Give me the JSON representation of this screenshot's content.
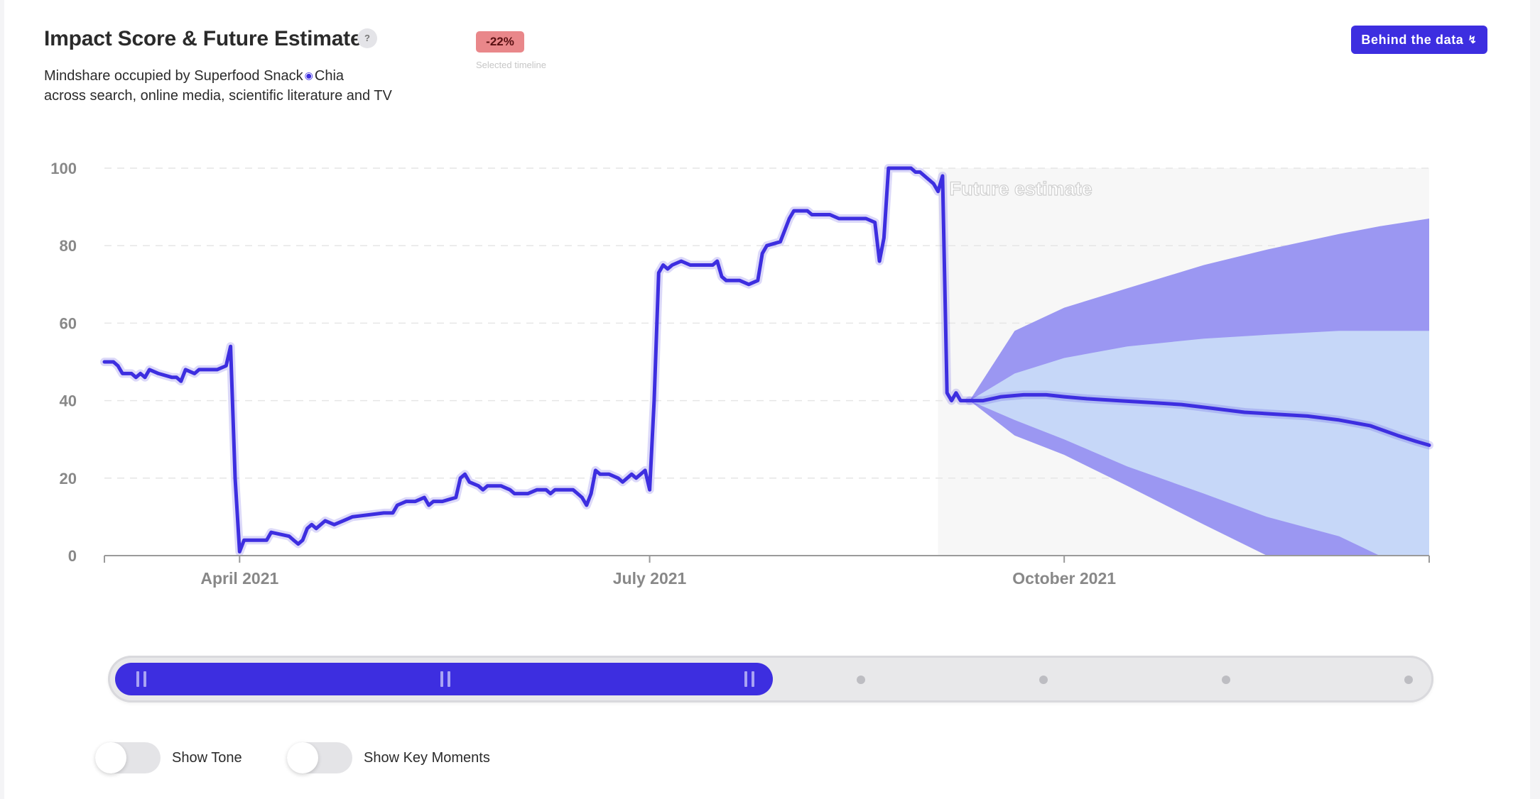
{
  "header": {
    "title": "Impact Score & Future Estimate",
    "help_label": "?",
    "subtitle_prefix": "Mindshare occupied by Superfood Snack",
    "subtitle_topic": "Chia",
    "subtitle_line2": "across search, online media, scientific literature and TV",
    "topic_icon": "eye-icon",
    "change_badge": "-22%",
    "change_caption": "Selected timeline",
    "behind_button_label": "Behind the data",
    "behind_button_icon": "bolt-icon"
  },
  "colors": {
    "accent": "#3d2ee0",
    "outer_band": "#9b97f2",
    "inner_band": "#c6d7f8",
    "future_bg": "#f7f7f7",
    "badge_bg": "#e9878a",
    "grid": "#e6e6e6",
    "axis_text": "#888888"
  },
  "chart_data": {
    "type": "line",
    "title": "Impact Score & Future Estimate",
    "ylim": [
      0,
      100
    ],
    "yticks": [
      0,
      20,
      40,
      60,
      80,
      100
    ],
    "xlim": [
      "2021-03-02",
      "2021-12-21"
    ],
    "xticks": [
      {
        "date": "2021-04-01",
        "label": "April 2021"
      },
      {
        "date": "2021-07-01",
        "label": "July 2021"
      },
      {
        "date": "2021-10-01",
        "label": "October 2021"
      }
    ],
    "grid": "horizontal dashed",
    "future_label": "Future estimate",
    "future_start": "2021-09-03",
    "series": [
      {
        "name": "",
        "kind": "historical",
        "points": [
          [
            "2021-03-02",
            50
          ],
          [
            "2021-03-04",
            50
          ],
          [
            "2021-03-05",
            49
          ],
          [
            "2021-03-06",
            47
          ],
          [
            "2021-03-08",
            47
          ],
          [
            "2021-03-09",
            46
          ],
          [
            "2021-03-10",
            47
          ],
          [
            "2021-03-11",
            46
          ],
          [
            "2021-03-12",
            48
          ],
          [
            "2021-03-14",
            47
          ],
          [
            "2021-03-17",
            46
          ],
          [
            "2021-03-18",
            46
          ],
          [
            "2021-03-19",
            45
          ],
          [
            "2021-03-20",
            48
          ],
          [
            "2021-03-22",
            47
          ],
          [
            "2021-03-23",
            48
          ],
          [
            "2021-03-27",
            48
          ],
          [
            "2021-03-29",
            49
          ],
          [
            "2021-03-30",
            54
          ],
          [
            "2021-03-31",
            20
          ],
          [
            "2021-04-01",
            1
          ],
          [
            "2021-04-02",
            4
          ],
          [
            "2021-04-07",
            4
          ],
          [
            "2021-04-08",
            6
          ],
          [
            "2021-04-12",
            5
          ],
          [
            "2021-04-13",
            4
          ],
          [
            "2021-04-14",
            3
          ],
          [
            "2021-04-15",
            4
          ],
          [
            "2021-04-16",
            7
          ],
          [
            "2021-04-17",
            8
          ],
          [
            "2021-04-18",
            7
          ],
          [
            "2021-04-20",
            9
          ],
          [
            "2021-04-22",
            8
          ],
          [
            "2021-04-24",
            9
          ],
          [
            "2021-04-26",
            10
          ],
          [
            "2021-05-03",
            11
          ],
          [
            "2021-05-05",
            11
          ],
          [
            "2021-05-06",
            13
          ],
          [
            "2021-05-08",
            14
          ],
          [
            "2021-05-10",
            14
          ],
          [
            "2021-05-12",
            15
          ],
          [
            "2021-05-13",
            13
          ],
          [
            "2021-05-14",
            14
          ],
          [
            "2021-05-16",
            14
          ],
          [
            "2021-05-19",
            15
          ],
          [
            "2021-05-20",
            20
          ],
          [
            "2021-05-21",
            21
          ],
          [
            "2021-05-22",
            19
          ],
          [
            "2021-05-24",
            18
          ],
          [
            "2021-05-25",
            17
          ],
          [
            "2021-05-26",
            18
          ],
          [
            "2021-05-29",
            18
          ],
          [
            "2021-05-31",
            17
          ],
          [
            "2021-06-01",
            16
          ],
          [
            "2021-06-04",
            16
          ],
          [
            "2021-06-06",
            17
          ],
          [
            "2021-06-08",
            17
          ],
          [
            "2021-06-09",
            16
          ],
          [
            "2021-06-10",
            17
          ],
          [
            "2021-06-14",
            17
          ],
          [
            "2021-06-15",
            16
          ],
          [
            "2021-06-16",
            15
          ],
          [
            "2021-06-17",
            13
          ],
          [
            "2021-06-18",
            16
          ],
          [
            "2021-06-19",
            22
          ],
          [
            "2021-06-20",
            21
          ],
          [
            "2021-06-22",
            21
          ],
          [
            "2021-06-24",
            20
          ],
          [
            "2021-06-25",
            19
          ],
          [
            "2021-06-26",
            20
          ],
          [
            "2021-06-27",
            21
          ],
          [
            "2021-06-28",
            20
          ],
          [
            "2021-06-29",
            21
          ],
          [
            "2021-06-30",
            22
          ],
          [
            "2021-07-01",
            17
          ],
          [
            "2021-07-02",
            40
          ],
          [
            "2021-07-03",
            73
          ],
          [
            "2021-07-04",
            75
          ],
          [
            "2021-07-05",
            74
          ],
          [
            "2021-07-06",
            75
          ],
          [
            "2021-07-08",
            76
          ],
          [
            "2021-07-10",
            75
          ],
          [
            "2021-07-15",
            75
          ],
          [
            "2021-07-16",
            76
          ],
          [
            "2021-07-17",
            72
          ],
          [
            "2021-07-18",
            71
          ],
          [
            "2021-07-21",
            71
          ],
          [
            "2021-07-23",
            70
          ],
          [
            "2021-07-25",
            71
          ],
          [
            "2021-07-26",
            78
          ],
          [
            "2021-07-27",
            80
          ],
          [
            "2021-07-30",
            81
          ],
          [
            "2021-08-01",
            87
          ],
          [
            "2021-08-02",
            89
          ],
          [
            "2021-08-05",
            89
          ],
          [
            "2021-08-06",
            88
          ],
          [
            "2021-08-10",
            88
          ],
          [
            "2021-08-12",
            87
          ],
          [
            "2021-08-18",
            87
          ],
          [
            "2021-08-20",
            86
          ],
          [
            "2021-08-21",
            76
          ],
          [
            "2021-08-22",
            82
          ],
          [
            "2021-08-23",
            100
          ],
          [
            "2021-08-24",
            100
          ],
          [
            "2021-08-28",
            100
          ],
          [
            "2021-08-29",
            99
          ],
          [
            "2021-08-30",
            99
          ],
          [
            "2021-09-01",
            97
          ],
          [
            "2021-09-02",
            96
          ],
          [
            "2021-09-03",
            94
          ],
          [
            "2021-09-04",
            98
          ],
          [
            "2021-09-05",
            42
          ],
          [
            "2021-09-06",
            40
          ],
          [
            "2021-09-07",
            42
          ],
          [
            "2021-09-08",
            40
          ],
          [
            "2021-09-10",
            40
          ]
        ]
      },
      {
        "name": "",
        "kind": "forecast",
        "points": [
          [
            "2021-09-10",
            40
          ],
          [
            "2021-09-13",
            40
          ],
          [
            "2021-09-17",
            41
          ],
          [
            "2021-09-22",
            41.5
          ],
          [
            "2021-09-27",
            41.5
          ],
          [
            "2021-10-01",
            41
          ],
          [
            "2021-10-06",
            40.5
          ],
          [
            "2021-10-13",
            40
          ],
          [
            "2021-10-20",
            39.5
          ],
          [
            "2021-10-27",
            39
          ],
          [
            "2021-11-03",
            38
          ],
          [
            "2021-11-10",
            37
          ],
          [
            "2021-11-17",
            36.5
          ],
          [
            "2021-11-24",
            36
          ],
          [
            "2021-12-01",
            35
          ],
          [
            "2021-12-08",
            33.5
          ],
          [
            "2021-12-14",
            31
          ],
          [
            "2021-12-18",
            29.5
          ],
          [
            "2021-12-21",
            28.5
          ]
        ]
      }
    ],
    "confidence_bands": {
      "dates": [
        "2021-09-10",
        "2021-09-20",
        "2021-10-01",
        "2021-10-15",
        "2021-11-01",
        "2021-11-15",
        "2021-12-01",
        "2021-12-10",
        "2021-12-21"
      ],
      "outer_upper": [
        40,
        58,
        64,
        69,
        75,
        79,
        83,
        85,
        87
      ],
      "outer_lower": [
        40,
        31,
        26,
        18,
        8,
        0,
        0,
        0,
        0
      ],
      "inner_upper": [
        40,
        47,
        51,
        54,
        56,
        57,
        58,
        58,
        58
      ],
      "inner_lower": [
        40,
        35,
        30,
        23,
        16,
        10,
        5,
        0,
        0
      ]
    }
  },
  "slider": {
    "selected_range_fraction": [
      0,
      0.5
    ],
    "handle_icon": "grip-icon",
    "dot_icon": "tick-dot-icon"
  },
  "toggles": [
    {
      "label": "Show Tone",
      "on": false
    },
    {
      "label": "Show Key Moments",
      "on": false
    }
  ]
}
